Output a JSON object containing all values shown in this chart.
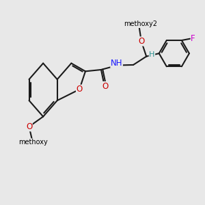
{
  "bg_color": "#e8e8e8",
  "bond_color": "#1a1a1a",
  "bond_width": 1.5,
  "font_size": 8.5,
  "figsize": [
    3.0,
    3.0
  ],
  "dpi": 100,
  "xlim": [
    0,
    10
  ],
  "ylim": [
    0,
    10
  ]
}
